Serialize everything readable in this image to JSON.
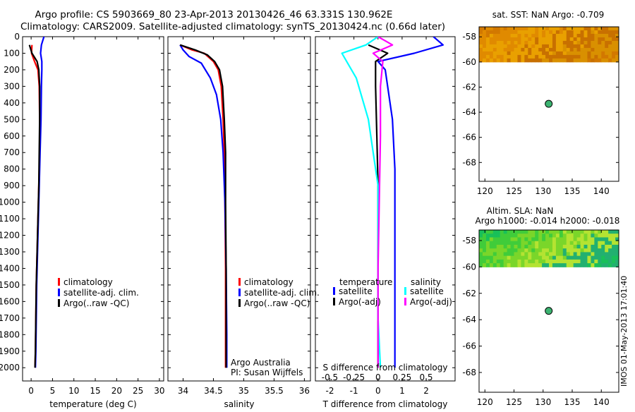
{
  "header": {
    "title_line1": "Argo profile: CS 5903669_80 23-Apr-2013 20130426_46 63.331S 130.962E",
    "title_line2": "Climatology: CARS2009. Satellite-adjusted climatology: synTS_20130424.nc (0.66d later)"
  },
  "footer": {
    "credit": "IMOS 01-May-2013 17:01:40",
    "credit_logo": "||||"
  },
  "colors": {
    "climatology": "#ff0000",
    "satellite": "#0000ff",
    "argo": "#000000",
    "satellite_salinity": "#00ffff",
    "argo_salinity": "#ff00ff",
    "float_marker": "#3cb371"
  },
  "chart_data": [
    {
      "id": "temperature",
      "type": "line",
      "xlabel": "temperature (deg C)",
      "ylabel": "",
      "xlim": [
        -2,
        31
      ],
      "ylim": [
        2080,
        0
      ],
      "xticks": [
        0,
        5,
        10,
        15,
        20,
        25,
        30
      ],
      "yticks": [
        0,
        100,
        200,
        300,
        400,
        500,
        600,
        700,
        800,
        900,
        1000,
        1100,
        1200,
        1300,
        1400,
        1500,
        1600,
        1700,
        1800,
        1900,
        2000
      ],
      "grid": false,
      "legend_position": "lower-middle",
      "series": [
        {
          "name": "climatology",
          "color_key": "climatology",
          "points": [
            [
              0.2,
              50
            ],
            [
              0.1,
              100
            ],
            [
              0.8,
              150
            ],
            [
              1.6,
              200
            ],
            [
              1.9,
              300
            ],
            [
              2.0,
              500
            ],
            [
              2.0,
              700
            ],
            [
              1.8,
              900
            ],
            [
              1.6,
              1100
            ],
            [
              1.4,
              1300
            ],
            [
              1.2,
              1500
            ],
            [
              1.1,
              1700
            ],
            [
              1.0,
              1900
            ],
            [
              0.9,
              2000
            ]
          ]
        },
        {
          "name": "satellite-adj. clim.",
          "color_key": "satellite",
          "points": [
            [
              3.0,
              0
            ],
            [
              2.4,
              50
            ],
            [
              2.2,
              100
            ],
            [
              2.5,
              150
            ],
            [
              2.5,
              200
            ],
            [
              2.4,
              300
            ],
            [
              2.3,
              500
            ],
            [
              2.1,
              700
            ],
            [
              1.9,
              900
            ],
            [
              1.7,
              1100
            ],
            [
              1.5,
              1300
            ],
            [
              1.3,
              1500
            ],
            [
              1.2,
              1700
            ],
            [
              1.1,
              1900
            ],
            [
              1.0,
              2000
            ]
          ]
        },
        {
          "name": "Argo(..raw -QC)",
          "color_key": "argo",
          "points": [
            [
              -0.4,
              50
            ],
            [
              0.2,
              100
            ],
            [
              1.4,
              150
            ],
            [
              1.8,
              200
            ],
            [
              2.0,
              300
            ],
            [
              2.0,
              500
            ],
            [
              1.9,
              700
            ],
            [
              1.8,
              900
            ],
            [
              1.6,
              1100
            ],
            [
              1.4,
              1300
            ],
            [
              1.2,
              1500
            ],
            [
              1.1,
              1700
            ],
            [
              1.0,
              1900
            ],
            [
              0.9,
              2000
            ]
          ]
        }
      ]
    },
    {
      "id": "salinity",
      "type": "line",
      "xlabel": "salinity",
      "ylabel": "",
      "xlim": [
        33.75,
        36.1
      ],
      "ylim": [
        2080,
        0
      ],
      "xticks": [
        34,
        34.5,
        35,
        35.5,
        36
      ],
      "grid": false,
      "legend_position": "lower-middle",
      "annotation": [
        "Argo Australia",
        "PI: Susan Wijffels"
      ],
      "series": [
        {
          "name": "climatology",
          "color_key": "climatology",
          "points": [
            [
              33.95,
              50
            ],
            [
              34.15,
              80
            ],
            [
              34.35,
              100
            ],
            [
              34.5,
              150
            ],
            [
              34.58,
              200
            ],
            [
              34.63,
              300
            ],
            [
              34.66,
              500
            ],
            [
              34.68,
              700
            ],
            [
              34.69,
              1000
            ],
            [
              34.7,
              1400
            ],
            [
              34.7,
              1800
            ],
            [
              34.7,
              2000
            ]
          ]
        },
        {
          "name": "satellite-adj. clim.",
          "color_key": "satellite",
          "points": [
            [
              33.95,
              50
            ],
            [
              34.0,
              80
            ],
            [
              34.1,
              120
            ],
            [
              34.3,
              160
            ],
            [
              34.45,
              250
            ],
            [
              34.55,
              350
            ],
            [
              34.62,
              500
            ],
            [
              34.66,
              700
            ],
            [
              34.69,
              1000
            ],
            [
              34.71,
              1400
            ],
            [
              34.72,
              1800
            ],
            [
              34.72,
              2000
            ]
          ]
        },
        {
          "name": "Argo(..raw -QC)",
          "color_key": "argo",
          "points": [
            [
              33.95,
              50
            ],
            [
              34.2,
              80
            ],
            [
              34.4,
              110
            ],
            [
              34.52,
              150
            ],
            [
              34.6,
              200
            ],
            [
              34.65,
              300
            ],
            [
              34.68,
              500
            ],
            [
              34.7,
              700
            ],
            [
              34.7,
              1000
            ],
            [
              34.71,
              1400
            ],
            [
              34.71,
              1800
            ],
            [
              34.71,
              2000
            ]
          ]
        }
      ]
    },
    {
      "id": "difference",
      "type": "line",
      "xlabel": "T difference from climatology",
      "xlabel_top": "S difference from climatology",
      "ylabel": "",
      "xlim": [
        -2.6,
        3.2
      ],
      "ylim": [
        2080,
        0
      ],
      "xticks": [
        -2,
        -1,
        0,
        1,
        2
      ],
      "xticks_secondary_labels": [
        "-0.5",
        "-0.25",
        "0",
        "0.25",
        "0.5"
      ],
      "xticks_secondary_positions": [
        -2,
        -1,
        0,
        1,
        2
      ],
      "grid": false,
      "legend_position": "lower-middle",
      "legend_headers": [
        "temperature",
        "salinity"
      ],
      "series": [
        {
          "name": "satellite",
          "group": "temperature",
          "color_key": "satellite",
          "points": [
            [
              2.3,
              0
            ],
            [
              2.7,
              50
            ],
            [
              1.5,
              100
            ],
            [
              0.0,
              150
            ],
            [
              0.3,
              200
            ],
            [
              0.4,
              300
            ],
            [
              0.6,
              500
            ],
            [
              0.7,
              800
            ],
            [
              0.7,
              1200
            ],
            [
              0.7,
              1600
            ],
            [
              0.7,
              2000
            ]
          ]
        },
        {
          "name": "Argo(-adj)",
          "group": "temperature",
          "color_key": "argo",
          "points": [
            [
              -0.4,
              50
            ],
            [
              0.4,
              100
            ],
            [
              -0.1,
              150
            ],
            [
              -0.1,
              300
            ],
            [
              -0.05,
              600
            ],
            [
              0.0,
              900
            ],
            [
              0.0,
              1200
            ],
            [
              0.0,
              1600
            ],
            [
              0.0,
              2000
            ]
          ]
        },
        {
          "name": "satellite",
          "group": "salinity",
          "color_key": "satellite_salinity",
          "points": [
            [
              0.0,
              0
            ],
            [
              -0.5,
              50
            ],
            [
              -1.5,
              100
            ],
            [
              -0.9,
              250
            ],
            [
              -0.4,
              500
            ],
            [
              -0.2,
              700
            ],
            [
              0.0,
              900
            ],
            [
              0.0,
              1300
            ],
            [
              0.0,
              1700
            ],
            [
              0.1,
              2000
            ]
          ]
        },
        {
          "name": "Argo(-adj)",
          "group": "salinity",
          "color_key": "argo_salinity",
          "points": [
            [
              0.0,
              0
            ],
            [
              0.6,
              50
            ],
            [
              -0.2,
              100
            ],
            [
              0.2,
              150
            ],
            [
              0.1,
              300
            ],
            [
              0.1,
              600
            ],
            [
              0.05,
              1000
            ],
            [
              0.0,
              1400
            ],
            [
              0.0,
              2000
            ]
          ]
        }
      ]
    },
    {
      "id": "sst_map",
      "type": "heatmap",
      "title": "sat. SST: NaN Argo: -0.709",
      "xlim": [
        119,
        143
      ],
      "ylim": [
        -69.5,
        -57.2
      ],
      "xticks": [
        120,
        125,
        130,
        135,
        140
      ],
      "yticks": [
        -58,
        -60,
        -62,
        -64,
        -66,
        -68
      ],
      "field_lat_range": [
        -60,
        -57.2
      ],
      "field_palette": [
        "#d27800",
        "#e08a00",
        "#e9a000",
        "#c87000",
        "#d99000"
      ],
      "argo_position": [
        130.962,
        -63.331
      ]
    },
    {
      "id": "sla_map",
      "type": "heatmap",
      "title_line1": "Altim. SLA: NaN",
      "title_line2": "Argo h1000: -0.014 h2000: -0.018",
      "xlim": [
        119,
        143
      ],
      "ylim": [
        -69.5,
        -57.2
      ],
      "xticks": [
        120,
        125,
        130,
        135,
        140
      ],
      "yticks": [
        -58,
        -60,
        -62,
        -64,
        -66,
        -68
      ],
      "field_lat_range": [
        -60,
        -57.2
      ],
      "field_palette": [
        "#19c059",
        "#40cc3a",
        "#7ad62a",
        "#b4e332",
        "#22b070"
      ],
      "argo_position": [
        130.962,
        -63.331
      ]
    }
  ]
}
